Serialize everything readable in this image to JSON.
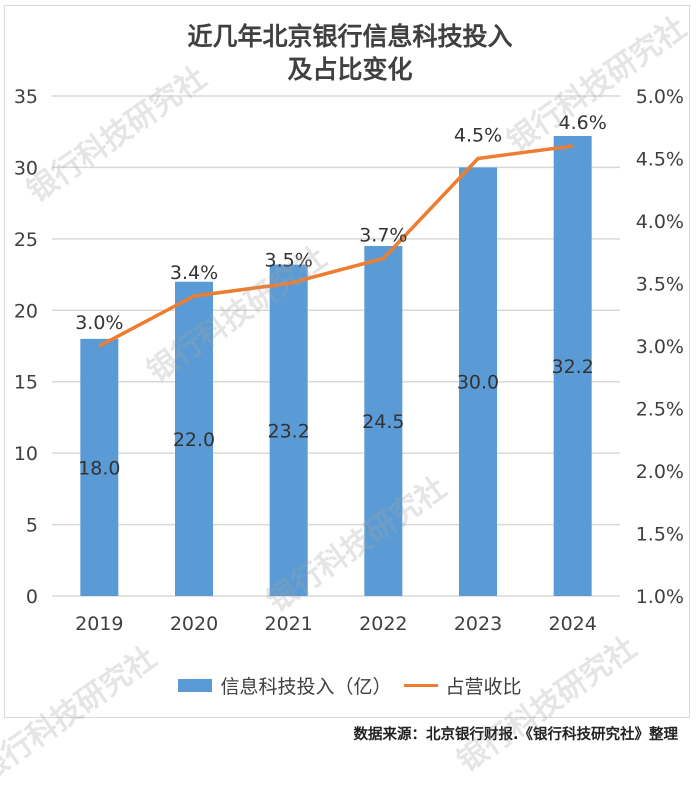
{
  "title": {
    "line1": "近几年北京银行信息科技投入",
    "line2": "及占比变化"
  },
  "legend": {
    "bar_label": "信息科技投入（亿）",
    "line_label": "占营收比"
  },
  "source": "数据来源：北京银行财报.《银行科技研究社》整理",
  "watermark": "银行科技研究社",
  "colors": {
    "bar": "#5b9bd5",
    "line": "#ed7d31",
    "grid": "#d9d9d9",
    "text": "#404040"
  },
  "chart_data": {
    "type": "bar+line",
    "title": "近几年北京银行信息科技投入及占比变化",
    "categories": [
      "2019",
      "2020",
      "2021",
      "2022",
      "2023",
      "2024"
    ],
    "series": [
      {
        "name": "信息科技投入（亿）",
        "type": "bar",
        "axis": "left",
        "values": [
          18.0,
          22.0,
          23.2,
          24.5,
          30.0,
          32.2
        ],
        "labels": [
          "18.0",
          "22.0",
          "23.2",
          "24.5",
          "30.0",
          "32.2"
        ]
      },
      {
        "name": "占营收比",
        "type": "line",
        "axis": "right",
        "values": [
          3.0,
          3.4,
          3.5,
          3.7,
          4.5,
          4.6
        ],
        "labels": [
          "3.0%",
          "3.4%",
          "3.5%",
          "3.7%",
          "4.5%",
          "4.6%"
        ]
      }
    ],
    "left_axis": {
      "ylim": [
        0,
        35
      ],
      "ticks": [
        "0",
        "5",
        "10",
        "15",
        "20",
        "25",
        "30",
        "35"
      ]
    },
    "right_axis": {
      "ylim": [
        1.0,
        5.0
      ],
      "ticks": [
        "1.0%",
        "1.5%",
        "2.0%",
        "2.5%",
        "3.0%",
        "3.5%",
        "4.0%",
        "4.5%",
        "5.0%"
      ]
    },
    "grid": true,
    "legend_position": "bottom"
  }
}
